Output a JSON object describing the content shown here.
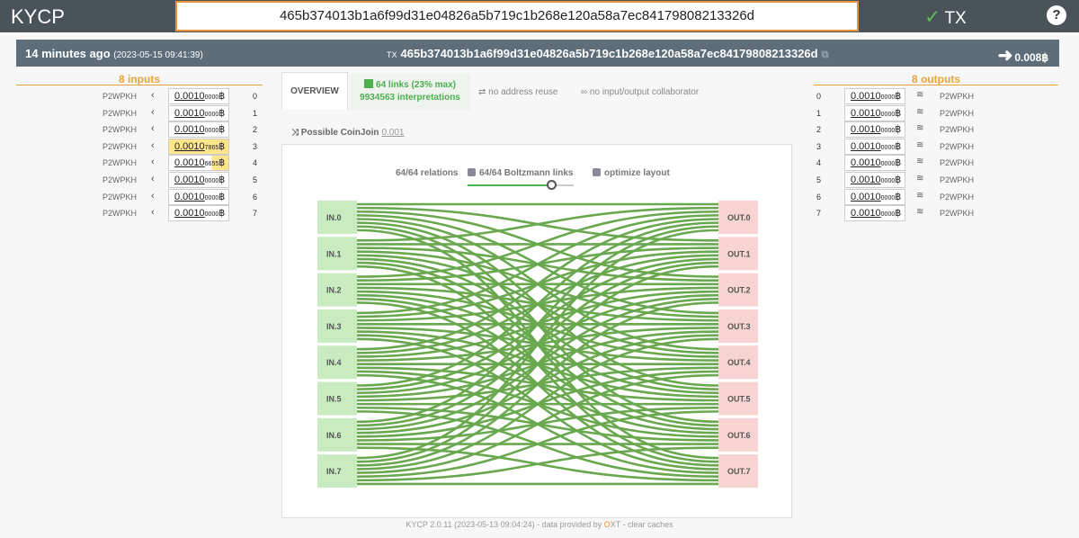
{
  "app": {
    "brand": "KYCP",
    "search_value": "465b374013b1a6f99d31e04826a5b719c1b268e120a58a7ec84179808213326d",
    "tx_nav": "TX",
    "help": "?"
  },
  "info": {
    "age": "14 minutes ago",
    "date": "(2023-05-15 09:41:39)",
    "tx_label": "TX",
    "txid": "465b374013b1a6f99d31e04826a5b719c1b268e120a58a7ec84179808213326d",
    "total_out": "0.008"
  },
  "inputs": {
    "header": "8 inputs",
    "rows": [
      {
        "type": "P2WPKH",
        "big": "0.0010",
        "small": "0000",
        "idx": "0",
        "hl": ""
      },
      {
        "type": "P2WPKH",
        "big": "0.0010",
        "small": "0000",
        "idx": "1",
        "hl": ""
      },
      {
        "type": "P2WPKH",
        "big": "0.0010",
        "small": "0000",
        "idx": "2",
        "hl": ""
      },
      {
        "type": "P2WPKH",
        "big": "0.0010",
        "small": "7865",
        "idx": "3",
        "hl": "full"
      },
      {
        "type": "P2WPKH",
        "big": "0.0010",
        "small": "6655",
        "idx": "4",
        "hl": "part"
      },
      {
        "type": "P2WPKH",
        "big": "0.0010",
        "small": "0000",
        "idx": "5",
        "hl": ""
      },
      {
        "type": "P2WPKH",
        "big": "0.0010",
        "small": "0000",
        "idx": "6",
        "hl": ""
      },
      {
        "type": "P2WPKH",
        "big": "0.0010",
        "small": "0000",
        "idx": "7",
        "hl": ""
      }
    ]
  },
  "outputs": {
    "header": "8 outputs",
    "rows": [
      {
        "idx": "0",
        "big": "0.0010",
        "small": "0000",
        "type": "P2WPKH"
      },
      {
        "idx": "1",
        "big": "0.0010",
        "small": "0000",
        "type": "P2WPKH"
      },
      {
        "idx": "2",
        "big": "0.0010",
        "small": "0000",
        "type": "P2WPKH"
      },
      {
        "idx": "3",
        "big": "0.0010",
        "small": "0000",
        "type": "P2WPKH"
      },
      {
        "idx": "4",
        "big": "0.0010",
        "small": "0000",
        "type": "P2WPKH"
      },
      {
        "idx": "5",
        "big": "0.0010",
        "small": "0000",
        "type": "P2WPKH"
      },
      {
        "idx": "6",
        "big": "0.0010",
        "small": "0000",
        "type": "P2WPKH"
      },
      {
        "idx": "7",
        "big": "0.0010",
        "small": "0000",
        "type": "P2WPKH"
      }
    ]
  },
  "panel": {
    "tab_overview": "OVERVIEW",
    "links": "64 links (23% max)",
    "interpretations": "9934563 interpretations",
    "no_reuse": "no address reuse",
    "no_collab": "no input/output collaborator",
    "coinjoin": "Possible CoinJoin",
    "coinjoin_val": "0.001"
  },
  "graph": {
    "relations": "64/64 relations",
    "boltzmann": "64/64 Boltzmann links",
    "optimize": "optimize layout",
    "slider_level": 0.8,
    "in_labels": [
      "IN.0",
      "IN.1",
      "IN.2",
      "IN.3",
      "IN.4",
      "IN.5",
      "IN.6",
      "IN.7"
    ],
    "out_labels": [
      "OUT.0",
      "OUT.1",
      "OUT.2",
      "OUT.3",
      "OUT.4",
      "OUT.5",
      "OUT.6",
      "OUT.7"
    ],
    "colors": {
      "in": "#c8ebc0",
      "out": "#f7d4d2",
      "link": "#6aa84f"
    }
  },
  "footer": {
    "pre": "KYCP 2.0.11 (2023-05-13 09:04:24) - data provided by ",
    "oxt_o": "O",
    "oxt_xt": "XT",
    "post": " - clear caches"
  },
  "btc": "฿"
}
